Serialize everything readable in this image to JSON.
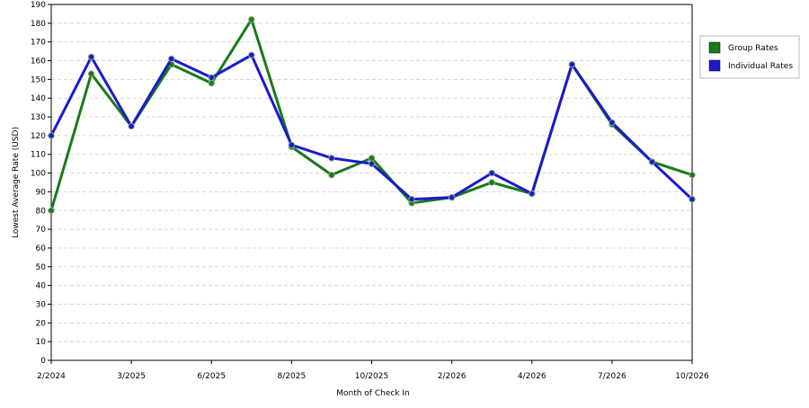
{
  "chart_data": {
    "type": "line",
    "x_label": "Month of Check In",
    "y_label": "Lowest Average Rate (USD)",
    "categories": [
      "2/2024",
      null,
      "3/2025",
      null,
      "6/2025",
      null,
      "8/2025",
      null,
      "10/2025",
      null,
      "2/2026",
      null,
      "4/2026",
      null,
      "7/2026",
      null,
      "10/2026"
    ],
    "series": [
      {
        "name": "Group Rates",
        "color": "#1a7a1a",
        "values": [
          80,
          153,
          125,
          158,
          148,
          182,
          114,
          99,
          108,
          84,
          87,
          95,
          89,
          158,
          126,
          106,
          99
        ]
      },
      {
        "name": "Individual Rates",
        "color": "#1a1acc",
        "values": [
          120,
          162,
          125,
          161,
          151,
          163,
          115,
          108,
          105,
          86,
          87,
          100,
          89,
          158,
          127,
          106,
          86
        ]
      }
    ],
    "ylim": [
      0,
      190
    ],
    "yticks": [
      0,
      10,
      20,
      30,
      40,
      50,
      60,
      70,
      80,
      90,
      100,
      110,
      120,
      130,
      140,
      150,
      160,
      170,
      180,
      190
    ],
    "grid": true,
    "legend": "right"
  }
}
